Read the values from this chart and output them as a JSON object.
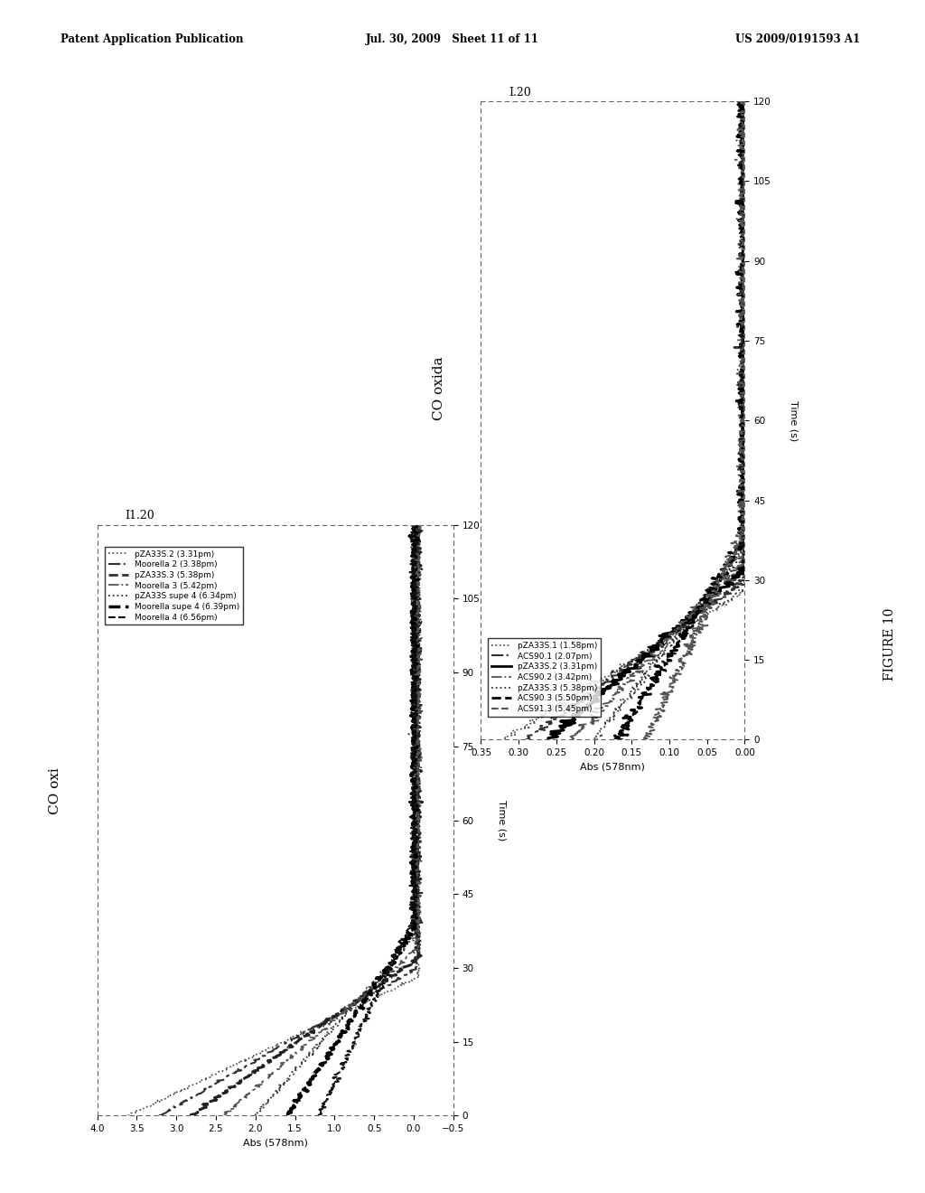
{
  "header_left": "Patent Application Publication",
  "header_mid": "Jul. 30, 2009   Sheet 11 of 11",
  "header_right": "US 2009/0191593 A1",
  "figure_label": "FIGURE 10",
  "plot1_title": "CO oxi",
  "plot1_ylabel": "Abs (578nm)",
  "plot1_xlabel": "Time (s)",
  "plot1_label_top": "I1.20",
  "plot1_abs_lim": [
    -0.5,
    4.0
  ],
  "plot1_time_lim": [
    0,
    120
  ],
  "plot1_abs_ticks": [
    -0.5,
    0,
    0.5,
    1,
    1.5,
    2,
    2.5,
    3,
    3.5,
    4
  ],
  "plot1_time_ticks": [
    0,
    15,
    30,
    45,
    60,
    75,
    90,
    105,
    120
  ],
  "plot1_legend": [
    {
      "label": "pZA33S.2 (3.31pm)",
      "ls": "dotted",
      "color": "#444444",
      "lw": 1.2
    },
    {
      "label": "Moorella 2 (3.38pm)",
      "ls": "dashdot",
      "color": "#333333",
      "lw": 1.5
    },
    {
      "label": "pZA33S.3 (5.38pm)",
      "ls": "dashed",
      "color": "#333333",
      "lw": 2.0
    },
    {
      "label": "Moorella 3 (5.42pm)",
      "ls": "dashdot",
      "color": "#555555",
      "lw": 1.3
    },
    {
      "label": "pZA33S supe 4 (6.34pm)",
      "ls": "dotted",
      "color": "#333333",
      "lw": 1.3
    },
    {
      "label": "Moorella supe 4 (6.39pm)",
      "ls": "dashed",
      "color": "#000000",
      "lw": 2.5
    },
    {
      "label": "Moorella 4 (6.56pm)",
      "ls": "dashed",
      "color": "#000000",
      "lw": 1.5
    }
  ],
  "plot2_title": "CO oxida",
  "plot2_ylabel": "Abs (578nm)",
  "plot2_xlabel": "Time (s)",
  "plot2_label_top": "I.20",
  "plot2_abs_lim": [
    0,
    0.35
  ],
  "plot2_time_lim": [
    0,
    120
  ],
  "plot2_abs_ticks": [
    0,
    0.05,
    0.1,
    0.15,
    0.2,
    0.25,
    0.3,
    0.35
  ],
  "plot2_time_ticks": [
    0,
    15,
    30,
    45,
    60,
    75,
    90,
    105,
    120
  ],
  "plot2_legend": [
    {
      "label": "pZA33S.1 (1.58pm)",
      "ls": "dotted",
      "color": "#444444",
      "lw": 1.2
    },
    {
      "label": "ACS90.1 (2.07pm)",
      "ls": "dashdot",
      "color": "#333333",
      "lw": 1.5
    },
    {
      "label": "pZA33S.2 (3.31pm)",
      "ls": "solid",
      "color": "#000000",
      "lw": 2.0
    },
    {
      "label": "ACS90.2 (3.42pm)",
      "ls": "dashdot",
      "color": "#555555",
      "lw": 1.3
    },
    {
      "label": "pZA33S.3 (5.38pm)",
      "ls": "dotted",
      "color": "#333333",
      "lw": 1.3
    },
    {
      "label": "ACS90.3 (5.50pm)",
      "ls": "dashed",
      "color": "#000000",
      "lw": 2.0
    },
    {
      "label": "ACS91.3 (5.45pm)",
      "ls": "dashed",
      "color": "#555555",
      "lw": 1.5
    }
  ]
}
